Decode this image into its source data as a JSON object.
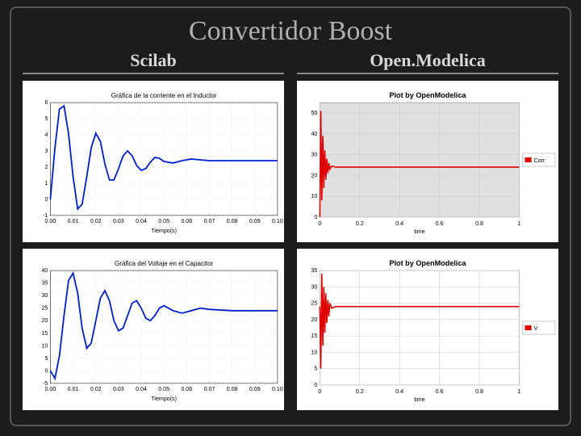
{
  "title": "Convertidor Boost",
  "left": {
    "name": "Scilab",
    "top": {
      "title": "Gráfica de la corriente en el Inductor",
      "xlabel": "Tiempo(s)",
      "line_color": "#0020d0",
      "bg": "#ffffff",
      "grid_color": "#d0d0d0",
      "xlim": [
        0,
        0.1
      ],
      "ylim": [
        -1,
        6
      ],
      "xticks": [
        0.0,
        0.01,
        0.02,
        0.03,
        0.04,
        0.05,
        0.06,
        0.07,
        0.08,
        0.09,
        0.1
      ],
      "yticks": [
        -1,
        0,
        1,
        2,
        3,
        4,
        5,
        6
      ],
      "series": [
        [
          0,
          0
        ],
        [
          0.002,
          3.2
        ],
        [
          0.004,
          5.6
        ],
        [
          0.006,
          5.8
        ],
        [
          0.008,
          4.1
        ],
        [
          0.01,
          1.4
        ],
        [
          0.012,
          -0.6
        ],
        [
          0.014,
          -0.3
        ],
        [
          0.016,
          1.4
        ],
        [
          0.018,
          3.2
        ],
        [
          0.02,
          4.1
        ],
        [
          0.022,
          3.6
        ],
        [
          0.024,
          2.2
        ],
        [
          0.026,
          1.2
        ],
        [
          0.028,
          1.2
        ],
        [
          0.03,
          1.9
        ],
        [
          0.032,
          2.7
        ],
        [
          0.034,
          3.0
        ],
        [
          0.036,
          2.7
        ],
        [
          0.038,
          2.1
        ],
        [
          0.04,
          1.8
        ],
        [
          0.042,
          1.9
        ],
        [
          0.044,
          2.3
        ],
        [
          0.046,
          2.6
        ],
        [
          0.048,
          2.55
        ],
        [
          0.05,
          2.35
        ],
        [
          0.054,
          2.25
        ],
        [
          0.058,
          2.4
        ],
        [
          0.062,
          2.5
        ],
        [
          0.066,
          2.45
        ],
        [
          0.07,
          2.4
        ],
        [
          0.08,
          2.4
        ],
        [
          0.09,
          2.4
        ],
        [
          0.1,
          2.4
        ]
      ]
    },
    "bottom": {
      "title": "Gráfica del Voltaje en el Capacitor",
      "xlabel": "Tiempo(s)",
      "line_color": "#0020d0",
      "bg": "#ffffff",
      "grid_color": "#d0d0d0",
      "xlim": [
        0,
        0.1
      ],
      "ylim": [
        -5,
        40
      ],
      "xticks": [
        0.0,
        0.01,
        0.02,
        0.03,
        0.04,
        0.05,
        0.06,
        0.07,
        0.08,
        0.09,
        0.1
      ],
      "yticks": [
        -5,
        0,
        5,
        10,
        15,
        20,
        25,
        30,
        35,
        40
      ],
      "series": [
        [
          0,
          0
        ],
        [
          0.002,
          -3
        ],
        [
          0.004,
          6
        ],
        [
          0.006,
          22
        ],
        [
          0.008,
          36
        ],
        [
          0.01,
          39
        ],
        [
          0.012,
          31
        ],
        [
          0.014,
          17
        ],
        [
          0.016,
          9
        ],
        [
          0.018,
          11
        ],
        [
          0.02,
          20
        ],
        [
          0.022,
          29
        ],
        [
          0.024,
          32
        ],
        [
          0.026,
          28
        ],
        [
          0.028,
          20
        ],
        [
          0.03,
          16
        ],
        [
          0.032,
          17
        ],
        [
          0.034,
          22
        ],
        [
          0.036,
          27
        ],
        [
          0.038,
          28
        ],
        [
          0.04,
          25
        ],
        [
          0.042,
          21
        ],
        [
          0.044,
          20
        ],
        [
          0.046,
          22
        ],
        [
          0.048,
          25
        ],
        [
          0.05,
          26
        ],
        [
          0.054,
          24
        ],
        [
          0.058,
          23
        ],
        [
          0.062,
          24
        ],
        [
          0.066,
          25
        ],
        [
          0.07,
          24.5
        ],
        [
          0.08,
          24
        ],
        [
          0.09,
          24
        ],
        [
          0.1,
          24
        ]
      ]
    }
  },
  "right": {
    "name": "Open.Modelica",
    "top": {
      "title": "Plot by OpenModelica",
      "xlabel": "time",
      "line_color": "#e00000",
      "bg": "#ffffff",
      "grid_color": "#c8c8c8",
      "plot_bg": "#e0e0e0",
      "legend": "Corr",
      "xlim": [
        0,
        1.0
      ],
      "ylim": [
        0,
        55
      ],
      "xticks": [
        0,
        0.2,
        0.4,
        0.6,
        0.8,
        1.0
      ],
      "yticks": [
        0,
        10,
        20,
        30,
        40,
        50
      ],
      "series": [
        [
          0,
          0
        ],
        [
          0.005,
          51
        ],
        [
          0.01,
          8
        ],
        [
          0.015,
          39
        ],
        [
          0.02,
          14
        ],
        [
          0.025,
          32
        ],
        [
          0.03,
          18
        ],
        [
          0.035,
          28
        ],
        [
          0.04,
          21
        ],
        [
          0.045,
          26
        ],
        [
          0.05,
          23
        ],
        [
          0.06,
          24.5
        ],
        [
          0.08,
          24
        ],
        [
          0.1,
          24
        ],
        [
          0.2,
          24
        ],
        [
          0.4,
          24
        ],
        [
          0.6,
          24
        ],
        [
          0.8,
          24
        ],
        [
          1.0,
          24
        ]
      ]
    },
    "bottom": {
      "title": "Plot by OpenModelica",
      "xlabel": "time",
      "line_color": "#e00000",
      "bg": "#ffffff",
      "grid_color": "#c8c8c8",
      "plot_bg": "#ffffff",
      "legend": "V",
      "xlim": [
        0,
        1.0
      ],
      "ylim": [
        0,
        35
      ],
      "xticks": [
        0,
        0.2,
        0.4,
        0.6,
        0.8,
        1.0
      ],
      "yticks": [
        0,
        5,
        10,
        15,
        20,
        25,
        30,
        35
      ],
      "series": [
        [
          0,
          24
        ],
        [
          0.005,
          5
        ],
        [
          0.01,
          34
        ],
        [
          0.015,
          12
        ],
        [
          0.02,
          30
        ],
        [
          0.025,
          16
        ],
        [
          0.03,
          28
        ],
        [
          0.035,
          19
        ],
        [
          0.04,
          26
        ],
        [
          0.045,
          21
        ],
        [
          0.05,
          25
        ],
        [
          0.06,
          23.5
        ],
        [
          0.08,
          24
        ],
        [
          0.1,
          24
        ],
        [
          0.2,
          24
        ],
        [
          0.4,
          24
        ],
        [
          0.6,
          24
        ],
        [
          0.8,
          24
        ],
        [
          1.0,
          24
        ]
      ]
    }
  }
}
